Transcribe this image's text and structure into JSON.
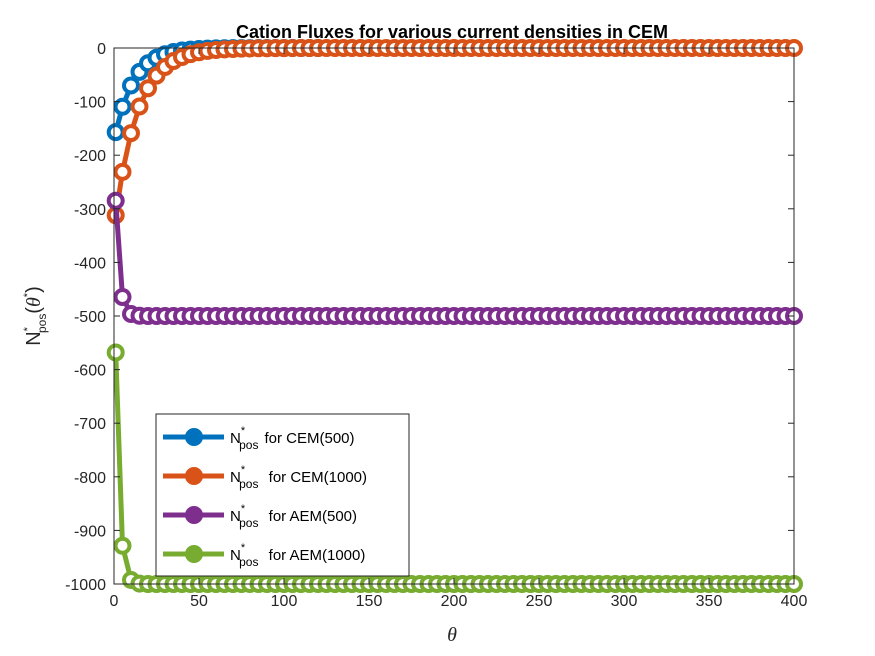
{
  "chart_data": {
    "type": "line",
    "title": "Cation Fluxes for various current densities in CEM",
    "xlabel": "θ",
    "ylabel": {
      "base": "N",
      "sup": "*",
      "sub": "pos",
      "arg_open": "(",
      "arg_theta": "θ",
      "arg_sup": "*",
      "arg_close": ")"
    },
    "xlim": [
      0,
      400
    ],
    "ylim": [
      -1000,
      0
    ],
    "xticks": [
      0,
      50,
      100,
      150,
      200,
      250,
      300,
      350,
      400
    ],
    "yticks": [
      0,
      -100,
      -200,
      -300,
      -400,
      -500,
      -600,
      -700,
      -800,
      -900,
      -1000
    ],
    "grid": false,
    "legend_position": "lower-left",
    "series": [
      {
        "name": "for CEM(500)",
        "legend": {
          "base": "N",
          "sup": "*",
          "sub": "pos",
          "text": "for CEM(500)"
        },
        "color": "#0072BD",
        "asymptote": 0,
        "initial": -157,
        "rate": 0.09,
        "x": [
          1,
          5,
          10,
          15,
          20,
          25,
          30,
          35,
          40,
          45,
          50,
          55,
          60,
          65,
          70,
          75,
          80,
          85,
          90,
          95,
          100,
          105,
          110,
          115,
          120
        ]
      },
      {
        "name": "for CEM(1000)",
        "legend": {
          "base": "N",
          "sup": "*",
          "sub": "pos",
          "text": " for CEM(1000)"
        },
        "color": "#D95319",
        "asymptote": 0,
        "initial": -312,
        "rate": 0.075,
        "x": [
          1,
          5,
          10,
          15,
          20,
          25,
          30,
          35,
          40,
          45,
          50,
          55,
          60,
          65,
          70,
          75,
          80,
          85,
          90,
          95,
          100,
          105,
          110,
          115,
          120,
          125,
          130,
          135,
          140,
          145,
          150,
          155,
          160,
          165,
          170,
          175,
          180,
          185,
          190,
          195,
          200,
          205,
          210,
          215,
          220,
          225,
          230,
          235,
          240,
          245,
          250,
          255,
          260,
          265,
          270,
          275,
          280,
          285,
          290,
          295,
          300,
          305,
          310,
          315,
          320,
          325,
          330,
          335,
          340,
          345,
          350,
          355,
          360,
          365,
          370,
          375,
          380,
          385,
          390,
          395,
          400
        ]
      },
      {
        "name": "for AEM(500)",
        "legend": {
          "base": "N",
          "sup": "*",
          "sub": "pos",
          "text": " for AEM(500)"
        },
        "color": "#7E2F8E",
        "asymptote": -500,
        "initial": -285,
        "rate": 0.45,
        "x": [
          1,
          5,
          10,
          15,
          20,
          25,
          30,
          35,
          40,
          45,
          50,
          55,
          60,
          65,
          70,
          75,
          80,
          85,
          90,
          95,
          100,
          105,
          110,
          115,
          120,
          125,
          130,
          135,
          140,
          145,
          150,
          155,
          160,
          165,
          170,
          175,
          180,
          185,
          190,
          195,
          200,
          205,
          210,
          215,
          220,
          225,
          230,
          235,
          240,
          245,
          250,
          255,
          260,
          265,
          270,
          275,
          280,
          285,
          290,
          295,
          300,
          305,
          310,
          315,
          320,
          325,
          330,
          335,
          340,
          345,
          350,
          355,
          360,
          365,
          370,
          375,
          380,
          385,
          390,
          395,
          400
        ]
      },
      {
        "name": "for AEM(1000)",
        "legend": {
          "base": "N",
          "sup": "*",
          "sub": "pos",
          "text": " for AEM(1000)"
        },
        "color": "#77AC30",
        "asymptote": -1000,
        "initial": -568,
        "rate": 0.45,
        "x": [
          1,
          5,
          10,
          15,
          20,
          25,
          30,
          35,
          40,
          45,
          50,
          55,
          60,
          65,
          70,
          75,
          80,
          85,
          90,
          95,
          100,
          105,
          110,
          115,
          120,
          125,
          130,
          135,
          140,
          145,
          150,
          155,
          160,
          165,
          170,
          175,
          180,
          185,
          190,
          195,
          200,
          205,
          210,
          215,
          220,
          225,
          230,
          235,
          240,
          245,
          250,
          255,
          260,
          265,
          270,
          275,
          280,
          285,
          290,
          295,
          300,
          305,
          310,
          315,
          320,
          325,
          330,
          335,
          340,
          345,
          350,
          355,
          360,
          365,
          370,
          375,
          380,
          385,
          390,
          395,
          400
        ]
      }
    ]
  }
}
